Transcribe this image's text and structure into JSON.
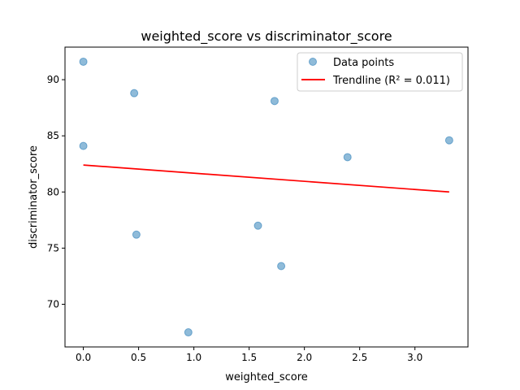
{
  "chart_data": {
    "type": "scatter",
    "title": "weighted_score vs discriminator_score",
    "xlabel": "weighted_score",
    "ylabel": "discriminator_score",
    "xlim": [
      -0.166,
      3.48
    ],
    "ylim": [
      66.2,
      92.9
    ],
    "xticks": [
      {
        "value": 0.0,
        "label": "0.0"
      },
      {
        "value": 0.5,
        "label": "0.5"
      },
      {
        "value": 1.0,
        "label": "1.0"
      },
      {
        "value": 1.5,
        "label": "1.5"
      },
      {
        "value": 2.0,
        "label": "2.0"
      },
      {
        "value": 2.5,
        "label": "2.5"
      },
      {
        "value": 3.0,
        "label": "3.0"
      }
    ],
    "yticks": [
      {
        "value": 70,
        "label": "70"
      },
      {
        "value": 75,
        "label": "75"
      },
      {
        "value": 80,
        "label": "80"
      },
      {
        "value": 85,
        "label": "85"
      },
      {
        "value": 90,
        "label": "90"
      }
    ],
    "grid": false,
    "legend_position": "top-right",
    "series": [
      {
        "name": "Data points",
        "kind": "scatter",
        "color": "#1f77b4",
        "alpha": 0.5,
        "x": [
          0.0,
          0.0,
          0.46,
          0.48,
          0.95,
          1.58,
          1.73,
          1.79,
          2.39,
          3.31
        ],
        "y": [
          91.6,
          84.1,
          88.8,
          76.2,
          67.5,
          77.0,
          88.1,
          73.4,
          83.1,
          84.6
        ]
      },
      {
        "name": "Trendline (R² = 0.011)",
        "kind": "line",
        "color": "#ff0000",
        "x": [
          0.0,
          3.31
        ],
        "y": [
          82.4,
          80.0
        ]
      }
    ]
  }
}
